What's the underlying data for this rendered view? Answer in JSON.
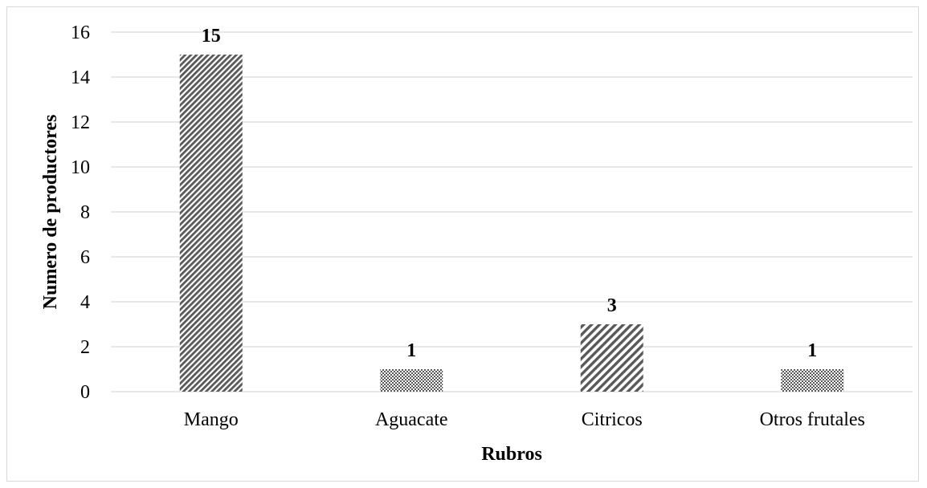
{
  "chart_data": {
    "type": "bar",
    "categories": [
      "Mango",
      "Aguacate",
      "Citricos",
      "Otros frutales"
    ],
    "values": [
      15,
      1,
      3,
      1
    ],
    "data_labels": [
      "15",
      "1",
      "3",
      "1"
    ],
    "title": "",
    "xlabel": "Rubros",
    "ylabel": "Numero de productores",
    "ylim": [
      0,
      16
    ],
    "yticks": [
      "0",
      "2",
      "4",
      "6",
      "8",
      "10",
      "12",
      "14",
      "16"
    ],
    "grid": true,
    "legend": "none",
    "bar_patterns": [
      "dense-diagonal",
      "checker",
      "wide-diagonal",
      "checker"
    ],
    "colors": {
      "gridline": "#d9d9d9",
      "bar_dark": "#595959",
      "bar_light": "#ffffff",
      "frame": "#d9d9d9"
    }
  }
}
